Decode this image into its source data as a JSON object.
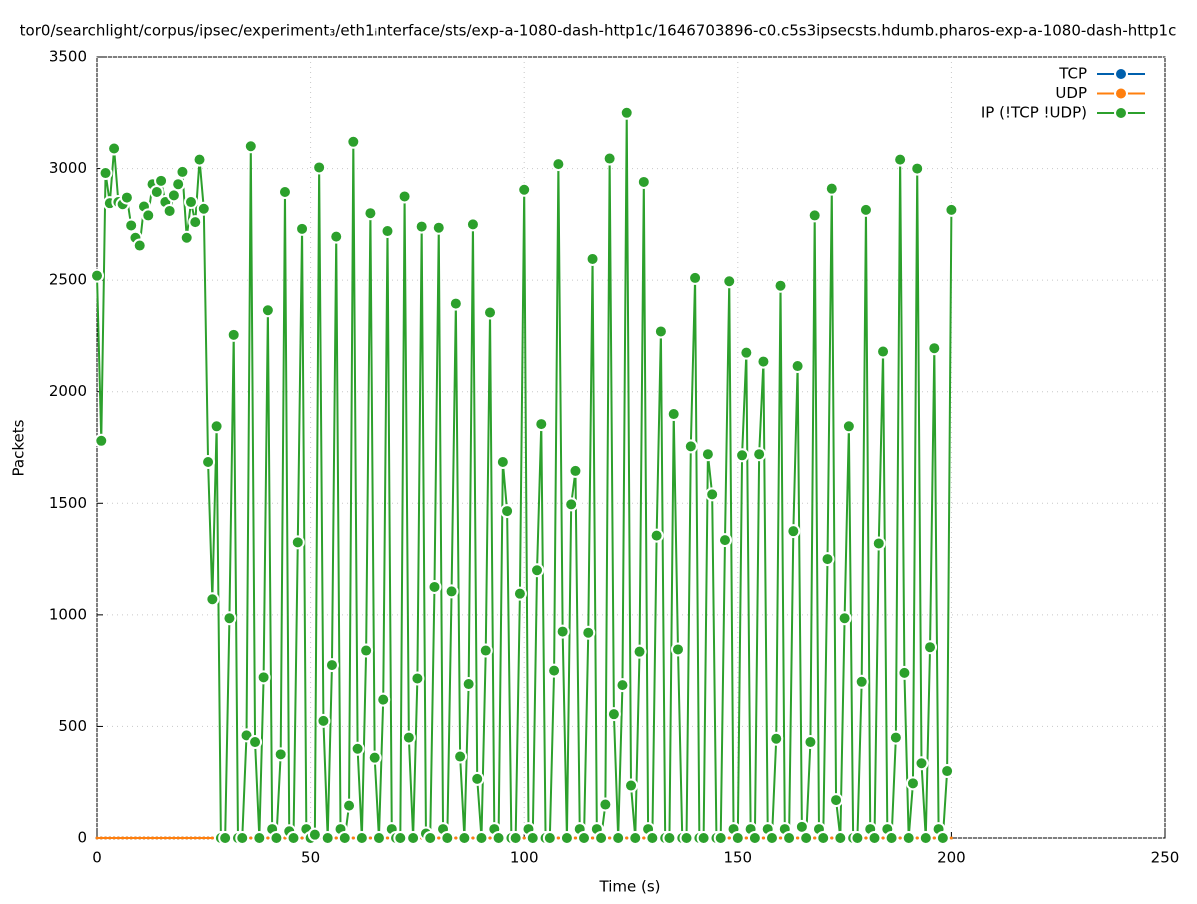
{
  "chart_data": {
    "type": "line",
    "title": "tor0/searchlight/corpus/ipsec/experiment₃/eth1ᵢnterface/sts/exp-a-1080-dash-http1c/1646703896-c0.c5s3ipsecsts.hdumb.pharos-exp-a-1080-dash-http1c",
    "x_label": "Time (s)",
    "y_label": "Packets",
    "xlim": [
      0,
      250
    ],
    "xticks": [
      0,
      50,
      100,
      150,
      200,
      250
    ],
    "ylim": [
      0,
      3500
    ],
    "yticks": [
      0,
      500,
      1000,
      1500,
      2000,
      2500,
      3000,
      3500
    ],
    "grid": true,
    "legend": "top-right",
    "x": [
      0,
      1,
      2,
      3,
      4,
      5,
      6,
      7,
      8,
      9,
      10,
      11,
      12,
      13,
      14,
      15,
      16,
      17,
      18,
      19,
      20,
      21,
      22,
      23,
      24,
      25,
      26,
      27,
      28,
      29,
      30,
      31,
      32,
      33,
      34,
      35,
      36,
      37,
      38,
      39,
      40,
      41,
      42,
      43,
      44,
      45,
      46,
      47,
      48,
      49,
      50,
      51,
      52,
      53,
      54,
      55,
      56,
      57,
      58,
      59,
      60,
      61,
      62,
      63,
      64,
      65,
      66,
      67,
      68,
      69,
      70,
      71,
      72,
      73,
      74,
      75,
      76,
      77,
      78,
      79,
      80,
      81,
      82,
      83,
      84,
      85,
      86,
      87,
      88,
      89,
      90,
      91,
      92,
      93,
      94,
      95,
      96,
      97,
      98,
      99,
      100,
      101,
      102,
      103,
      104,
      105,
      106,
      107,
      108,
      109,
      110,
      111,
      112,
      113,
      114,
      115,
      116,
      117,
      118,
      119,
      120,
      121,
      122,
      123,
      124,
      125,
      126,
      127,
      128,
      129,
      130,
      131,
      132,
      133,
      134,
      135,
      136,
      137,
      138,
      139,
      140,
      141,
      142,
      143,
      144,
      145,
      146,
      147,
      148,
      149,
      150,
      151,
      152,
      153,
      154,
      155,
      156,
      157,
      158,
      159,
      160,
      161,
      162,
      163,
      164,
      165,
      166,
      167,
      168,
      169,
      170,
      171,
      172,
      173,
      174,
      175,
      176,
      177,
      178,
      179,
      180,
      181,
      182,
      183,
      184,
      185,
      186,
      187,
      188,
      189,
      190,
      191,
      192,
      193,
      194,
      195,
      196,
      197,
      198,
      199,
      200
    ],
    "series": [
      {
        "name": "TCP",
        "color": "#0060ad",
        "values": [
          0,
          0,
          0,
          0,
          0,
          0,
          0,
          0,
          0,
          0,
          0,
          0,
          0,
          0,
          0,
          0,
          0,
          0,
          0,
          0,
          0,
          0,
          0,
          0,
          0,
          0,
          0,
          0,
          0,
          0,
          0,
          0,
          0,
          0,
          0,
          0,
          0,
          0,
          0,
          0,
          0,
          0,
          0,
          0,
          0,
          0,
          0,
          0,
          0,
          0,
          0,
          0,
          0,
          0,
          0,
          0,
          0,
          0,
          0,
          0,
          0,
          0,
          0,
          0,
          0,
          0,
          0,
          0,
          0,
          0,
          0,
          0,
          0,
          0,
          0,
          0,
          0,
          0,
          0,
          0,
          0,
          0,
          0,
          0,
          0,
          0,
          0,
          0,
          0,
          0,
          0,
          0,
          0,
          0,
          0,
          0,
          0,
          0,
          0,
          0,
          0,
          0,
          0,
          0,
          0,
          0,
          0,
          0,
          0,
          0,
          0,
          0,
          0,
          0,
          0,
          0,
          0,
          0,
          0,
          0,
          0,
          0,
          0,
          0,
          0,
          0,
          0,
          0,
          0,
          0,
          0,
          0,
          0,
          0,
          0,
          0,
          0,
          0,
          0,
          0,
          0,
          0,
          0,
          0,
          0,
          0,
          0,
          0,
          0,
          0,
          0,
          0,
          0,
          0,
          0,
          0,
          0,
          0,
          0,
          0,
          0,
          0,
          0,
          0,
          0,
          0,
          0,
          0,
          0,
          0,
          0,
          0,
          0,
          0,
          0,
          0,
          0,
          0,
          0,
          0,
          0,
          0,
          0,
          0,
          0,
          0,
          0,
          0,
          0,
          0,
          0,
          0,
          0,
          0,
          0,
          0,
          0,
          0,
          0,
          0,
          0
        ]
      },
      {
        "name": "UDP",
        "color": "#ff7f0e",
        "values": [
          0,
          0,
          0,
          0,
          0,
          0,
          0,
          0,
          0,
          0,
          0,
          0,
          0,
          0,
          0,
          0,
          0,
          0,
          0,
          0,
          0,
          0,
          0,
          0,
          0,
          0,
          0,
          0,
          0,
          0,
          0,
          0,
          0,
          0,
          0,
          0,
          0,
          0,
          0,
          0,
          0,
          0,
          0,
          0,
          0,
          0,
          0,
          0,
          0,
          0,
          0,
          0,
          0,
          0,
          0,
          0,
          0,
          0,
          0,
          0,
          0,
          0,
          0,
          0,
          0,
          0,
          0,
          0,
          0,
          0,
          0,
          0,
          0,
          0,
          0,
          0,
          0,
          0,
          0,
          0,
          0,
          0,
          0,
          0,
          0,
          0,
          0,
          0,
          0,
          0,
          0,
          0,
          0,
          0,
          0,
          0,
          0,
          0,
          0,
          0,
          0,
          0,
          0,
          0,
          0,
          0,
          0,
          0,
          0,
          0,
          0,
          0,
          0,
          0,
          0,
          0,
          0,
          0,
          0,
          0,
          0,
          0,
          0,
          0,
          0,
          0,
          0,
          0,
          0,
          0,
          0,
          0,
          0,
          0,
          0,
          0,
          0,
          0,
          0,
          0,
          0,
          0,
          0,
          0,
          0,
          0,
          0,
          0,
          0,
          0,
          0,
          0,
          0,
          0,
          0,
          0,
          0,
          0,
          0,
          0,
          0,
          0,
          0,
          0,
          0,
          0,
          0,
          0,
          0,
          0,
          0,
          0,
          0,
          0,
          0,
          0,
          0,
          0,
          0,
          0,
          0,
          0,
          0,
          0,
          0,
          0,
          0,
          0,
          0,
          0,
          0,
          0,
          0,
          0,
          0,
          0,
          0,
          0,
          0,
          0,
          0
        ]
      },
      {
        "name": "IP (!TCP  !UDP)",
        "color": "#2ca02c",
        "values": [
          2520,
          1780,
          2980,
          2845,
          3090,
          2850,
          2840,
          2870,
          2745,
          2690,
          2655,
          2830,
          2790,
          2930,
          2895,
          2945,
          2850,
          2810,
          2880,
          2930,
          2985,
          2690,
          2850,
          2760,
          3040,
          2820,
          1685,
          1070,
          1845,
          0,
          0,
          985,
          2255,
          0,
          0,
          460,
          3100,
          430,
          0,
          720,
          2365,
          40,
          0,
          375,
          2895,
          30,
          0,
          1325,
          2730,
          40,
          0,
          15,
          3005,
          525,
          0,
          775,
          2695,
          40,
          0,
          145,
          3120,
          400,
          0,
          840,
          2800,
          360,
          0,
          620,
          2720,
          40,
          0,
          0,
          2875,
          450,
          0,
          715,
          2740,
          20,
          0,
          1125,
          2735,
          40,
          0,
          1105,
          2395,
          365,
          0,
          690,
          2750,
          265,
          0,
          840,
          2355,
          40,
          0,
          1685,
          1465,
          0,
          0,
          1095,
          2905,
          40,
          0,
          1200,
          1855,
          0,
          0,
          750,
          3020,
          925,
          0,
          1495,
          1645,
          40,
          0,
          920,
          2595,
          40,
          0,
          150,
          3045,
          555,
          0,
          685,
          3250,
          235,
          0,
          835,
          2940,
          40,
          0,
          1355,
          2270,
          0,
          0,
          1900,
          845,
          0,
          0,
          1755,
          2510,
          0,
          0,
          1720,
          1540,
          0,
          0,
          1335,
          2495,
          40,
          0,
          1715,
          2175,
          40,
          0,
          1720,
          2135,
          40,
          0,
          445,
          2475,
          40,
          0,
          1375,
          2115,
          50,
          0,
          430,
          2790,
          40,
          0,
          1250,
          2910,
          170,
          0,
          985,
          1845,
          0,
          0,
          700,
          2815,
          40,
          0,
          1320,
          2180,
          40,
          0,
          450,
          3040,
          740,
          0,
          245,
          3000,
          335,
          0,
          855,
          2195,
          40,
          0,
          300,
          2815
        ]
      }
    ]
  }
}
